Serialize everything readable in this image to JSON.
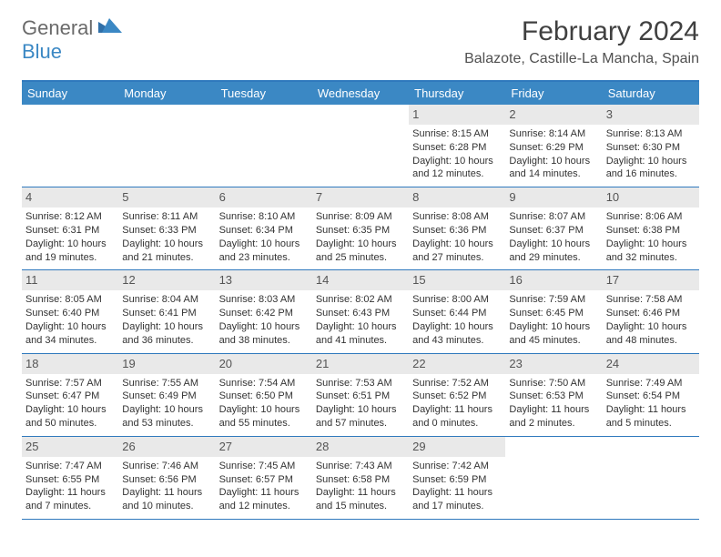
{
  "logo": {
    "part1": "General",
    "part2": "Blue"
  },
  "title": "February 2024",
  "location": "Balazote, Castille-La Mancha, Spain",
  "colors": {
    "header_bg": "#3b88c4",
    "header_border": "#2f79bd",
    "daynum_bg": "#e9e9e9",
    "text": "#333333",
    "logo_gray": "#6a6a6a",
    "logo_blue": "#3b88c4"
  },
  "day_names": [
    "Sunday",
    "Monday",
    "Tuesday",
    "Wednesday",
    "Thursday",
    "Friday",
    "Saturday"
  ],
  "weeks": [
    [
      null,
      null,
      null,
      null,
      {
        "n": "1",
        "sunrise": "8:15 AM",
        "sunset": "6:28 PM",
        "dl_h": 10,
        "dl_m": 12
      },
      {
        "n": "2",
        "sunrise": "8:14 AM",
        "sunset": "6:29 PM",
        "dl_h": 10,
        "dl_m": 14
      },
      {
        "n": "3",
        "sunrise": "8:13 AM",
        "sunset": "6:30 PM",
        "dl_h": 10,
        "dl_m": 16
      }
    ],
    [
      {
        "n": "4",
        "sunrise": "8:12 AM",
        "sunset": "6:31 PM",
        "dl_h": 10,
        "dl_m": 19
      },
      {
        "n": "5",
        "sunrise": "8:11 AM",
        "sunset": "6:33 PM",
        "dl_h": 10,
        "dl_m": 21
      },
      {
        "n": "6",
        "sunrise": "8:10 AM",
        "sunset": "6:34 PM",
        "dl_h": 10,
        "dl_m": 23
      },
      {
        "n": "7",
        "sunrise": "8:09 AM",
        "sunset": "6:35 PM",
        "dl_h": 10,
        "dl_m": 25
      },
      {
        "n": "8",
        "sunrise": "8:08 AM",
        "sunset": "6:36 PM",
        "dl_h": 10,
        "dl_m": 27
      },
      {
        "n": "9",
        "sunrise": "8:07 AM",
        "sunset": "6:37 PM",
        "dl_h": 10,
        "dl_m": 29
      },
      {
        "n": "10",
        "sunrise": "8:06 AM",
        "sunset": "6:38 PM",
        "dl_h": 10,
        "dl_m": 32
      }
    ],
    [
      {
        "n": "11",
        "sunrise": "8:05 AM",
        "sunset": "6:40 PM",
        "dl_h": 10,
        "dl_m": 34
      },
      {
        "n": "12",
        "sunrise": "8:04 AM",
        "sunset": "6:41 PM",
        "dl_h": 10,
        "dl_m": 36
      },
      {
        "n": "13",
        "sunrise": "8:03 AM",
        "sunset": "6:42 PM",
        "dl_h": 10,
        "dl_m": 38
      },
      {
        "n": "14",
        "sunrise": "8:02 AM",
        "sunset": "6:43 PM",
        "dl_h": 10,
        "dl_m": 41
      },
      {
        "n": "15",
        "sunrise": "8:00 AM",
        "sunset": "6:44 PM",
        "dl_h": 10,
        "dl_m": 43
      },
      {
        "n": "16",
        "sunrise": "7:59 AM",
        "sunset": "6:45 PM",
        "dl_h": 10,
        "dl_m": 45
      },
      {
        "n": "17",
        "sunrise": "7:58 AM",
        "sunset": "6:46 PM",
        "dl_h": 10,
        "dl_m": 48
      }
    ],
    [
      {
        "n": "18",
        "sunrise": "7:57 AM",
        "sunset": "6:47 PM",
        "dl_h": 10,
        "dl_m": 50
      },
      {
        "n": "19",
        "sunrise": "7:55 AM",
        "sunset": "6:49 PM",
        "dl_h": 10,
        "dl_m": 53
      },
      {
        "n": "20",
        "sunrise": "7:54 AM",
        "sunset": "6:50 PM",
        "dl_h": 10,
        "dl_m": 55
      },
      {
        "n": "21",
        "sunrise": "7:53 AM",
        "sunset": "6:51 PM",
        "dl_h": 10,
        "dl_m": 57
      },
      {
        "n": "22",
        "sunrise": "7:52 AM",
        "sunset": "6:52 PM",
        "dl_h": 11,
        "dl_m": 0
      },
      {
        "n": "23",
        "sunrise": "7:50 AM",
        "sunset": "6:53 PM",
        "dl_h": 11,
        "dl_m": 2
      },
      {
        "n": "24",
        "sunrise": "7:49 AM",
        "sunset": "6:54 PM",
        "dl_h": 11,
        "dl_m": 5
      }
    ],
    [
      {
        "n": "25",
        "sunrise": "7:47 AM",
        "sunset": "6:55 PM",
        "dl_h": 11,
        "dl_m": 7
      },
      {
        "n": "26",
        "sunrise": "7:46 AM",
        "sunset": "6:56 PM",
        "dl_h": 11,
        "dl_m": 10
      },
      {
        "n": "27",
        "sunrise": "7:45 AM",
        "sunset": "6:57 PM",
        "dl_h": 11,
        "dl_m": 12
      },
      {
        "n": "28",
        "sunrise": "7:43 AM",
        "sunset": "6:58 PM",
        "dl_h": 11,
        "dl_m": 15
      },
      {
        "n": "29",
        "sunrise": "7:42 AM",
        "sunset": "6:59 PM",
        "dl_h": 11,
        "dl_m": 17
      },
      null,
      null
    ]
  ],
  "labels": {
    "sunrise_prefix": "Sunrise: ",
    "sunset_prefix": "Sunset: ",
    "daylight_prefix": "Daylight: ",
    "hours_word": " hours and ",
    "minutes_word": " minutes."
  }
}
